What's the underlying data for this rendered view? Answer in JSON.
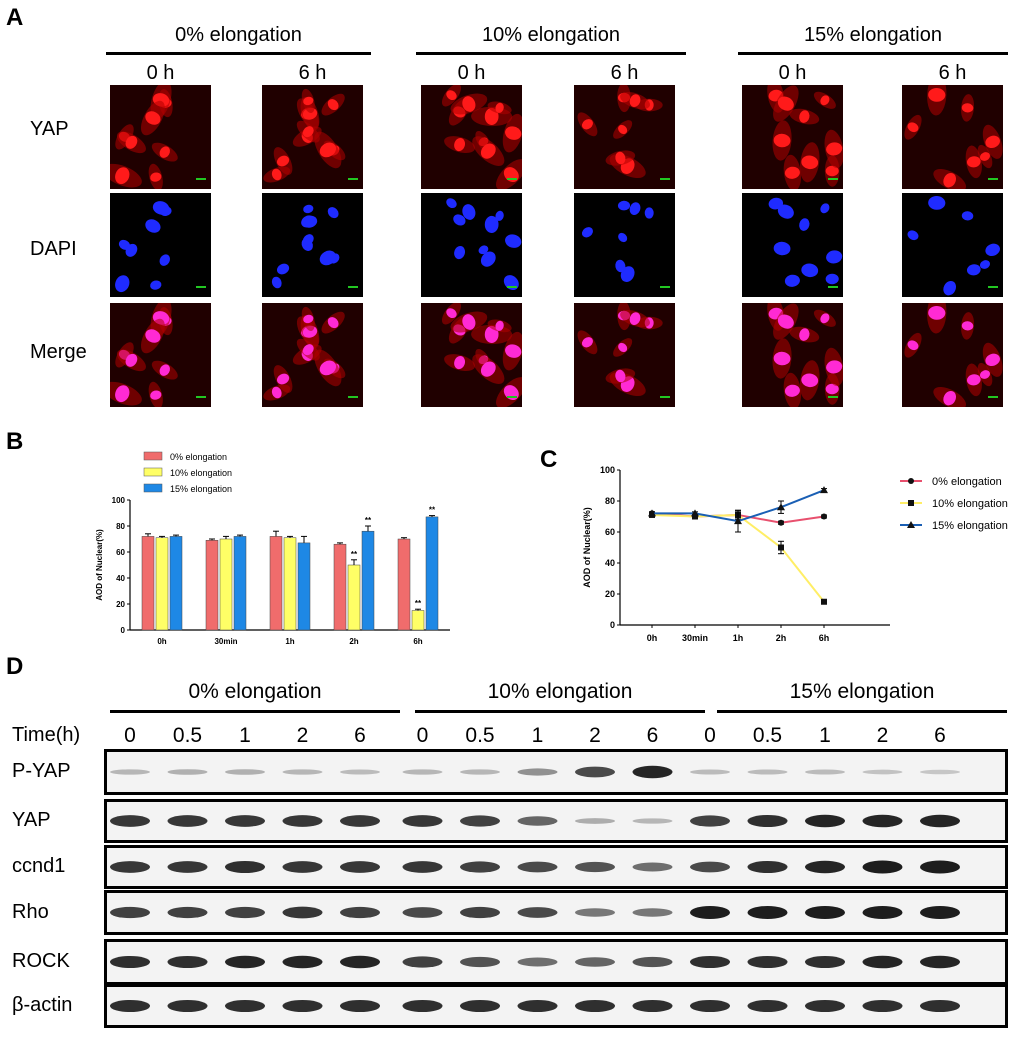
{
  "panels": {
    "a": "A",
    "b": "B",
    "c": "C",
    "d": "D"
  },
  "panel_a": {
    "groups": [
      "0% elongation",
      "10% elongation",
      "15% elongation"
    ],
    "times": [
      "0 h",
      "6 h"
    ],
    "rows": [
      "YAP",
      "DAPI",
      "Merge"
    ],
    "colors": {
      "yap": "#ff1a1a",
      "dapi": "#1f2bff",
      "merge": "#ff2ad4",
      "scale_bar": "#22c722"
    }
  },
  "panel_d": {
    "groups": [
      "0% elongation",
      "10% elongation",
      "15% elongation"
    ],
    "time_label": "Time(h)",
    "times": [
      "0",
      "0.5",
      "1",
      "2",
      "6",
      "0",
      "0.5",
      "1",
      "2",
      "6",
      "0",
      "0.5",
      "1",
      "2",
      "6"
    ],
    "rows": [
      "P-YAP",
      "YAP",
      "ccnd1",
      "Rho",
      "ROCK",
      "β-actin"
    ],
    "intensity": [
      [
        0.15,
        0.18,
        0.18,
        0.15,
        0.12,
        0.15,
        0.15,
        0.35,
        0.75,
        0.95,
        0.12,
        0.12,
        0.12,
        0.08,
        0.06
      ],
      [
        0.85,
        0.85,
        0.85,
        0.85,
        0.85,
        0.85,
        0.8,
        0.6,
        0.2,
        0.15,
        0.8,
        0.9,
        0.95,
        0.95,
        0.95
      ],
      [
        0.85,
        0.85,
        0.9,
        0.85,
        0.85,
        0.85,
        0.8,
        0.75,
        0.7,
        0.55,
        0.75,
        0.9,
        0.95,
        1.0,
        1.0
      ],
      [
        0.8,
        0.8,
        0.8,
        0.85,
        0.8,
        0.75,
        0.8,
        0.75,
        0.5,
        0.5,
        1.0,
        1.0,
        1.0,
        1.0,
        1.0
      ],
      [
        0.9,
        0.9,
        0.95,
        0.95,
        0.95,
        0.8,
        0.7,
        0.55,
        0.6,
        0.7,
        0.9,
        0.9,
        0.9,
        0.95,
        0.95
      ],
      [
        0.9,
        0.9,
        0.9,
        0.9,
        0.9,
        0.9,
        0.9,
        0.9,
        0.9,
        0.9,
        0.9,
        0.9,
        0.9,
        0.9,
        0.9
      ]
    ]
  },
  "chart_data": [
    {
      "type": "bar",
      "ylabel": "AOD of Nuclear(%)",
      "xlabel": "",
      "ylim": [
        0,
        100
      ],
      "yticks": [
        "0",
        "20",
        "40",
        "60",
        "80",
        "100"
      ],
      "categories": [
        "0h",
        "30min",
        "1h",
        "2h",
        "6h"
      ],
      "legend_position": "top-left",
      "series": [
        {
          "name": "0% elongation",
          "color": "#f06c6c",
          "values": [
            72,
            69,
            72,
            66,
            70
          ],
          "errors": [
            2,
            1,
            4,
            1,
            1
          ]
        },
        {
          "name": "10% elongation",
          "color": "#ffff66",
          "values": [
            71,
            70,
            71,
            50,
            15
          ],
          "errors": [
            1,
            2,
            1,
            4,
            1
          ]
        },
        {
          "name": "15% elongation",
          "color": "#1e88e5",
          "values": [
            72,
            72,
            67,
            76,
            87
          ],
          "errors": [
            1,
            1,
            5,
            4,
            1
          ]
        }
      ],
      "significance": [
        {
          "series": 1,
          "category": 3,
          "label": "**"
        },
        {
          "series": 2,
          "category": 3,
          "label": "**"
        },
        {
          "series": 1,
          "category": 4,
          "label": "**"
        },
        {
          "series": 2,
          "category": 4,
          "label": "**"
        }
      ]
    },
    {
      "type": "line",
      "ylabel": "AOD of Nuclear(%)",
      "xlabel": "",
      "ylim": [
        0,
        100
      ],
      "yticks": [
        "0",
        "20",
        "40",
        "60",
        "80",
        "100"
      ],
      "categories": [
        "0h",
        "30min",
        "1h",
        "2h",
        "6h"
      ],
      "legend_position": "right",
      "series": [
        {
          "name": "0% elongation",
          "color": "#e8506e",
          "marker": "circle",
          "values": [
            72,
            70,
            71,
            66,
            70
          ],
          "errors": [
            1,
            1,
            3,
            1,
            1
          ]
        },
        {
          "name": "10% elongation",
          "color": "#ffee66",
          "marker": "square",
          "values": [
            71,
            70,
            71,
            50,
            15
          ],
          "errors": [
            1,
            1,
            2,
            4,
            1
          ]
        },
        {
          "name": "15% elongation",
          "color": "#1a5fb4",
          "marker": "triangle",
          "values": [
            72,
            72,
            67,
            76,
            87
          ],
          "errors": [
            1,
            1,
            7,
            4,
            1
          ]
        }
      ]
    }
  ]
}
